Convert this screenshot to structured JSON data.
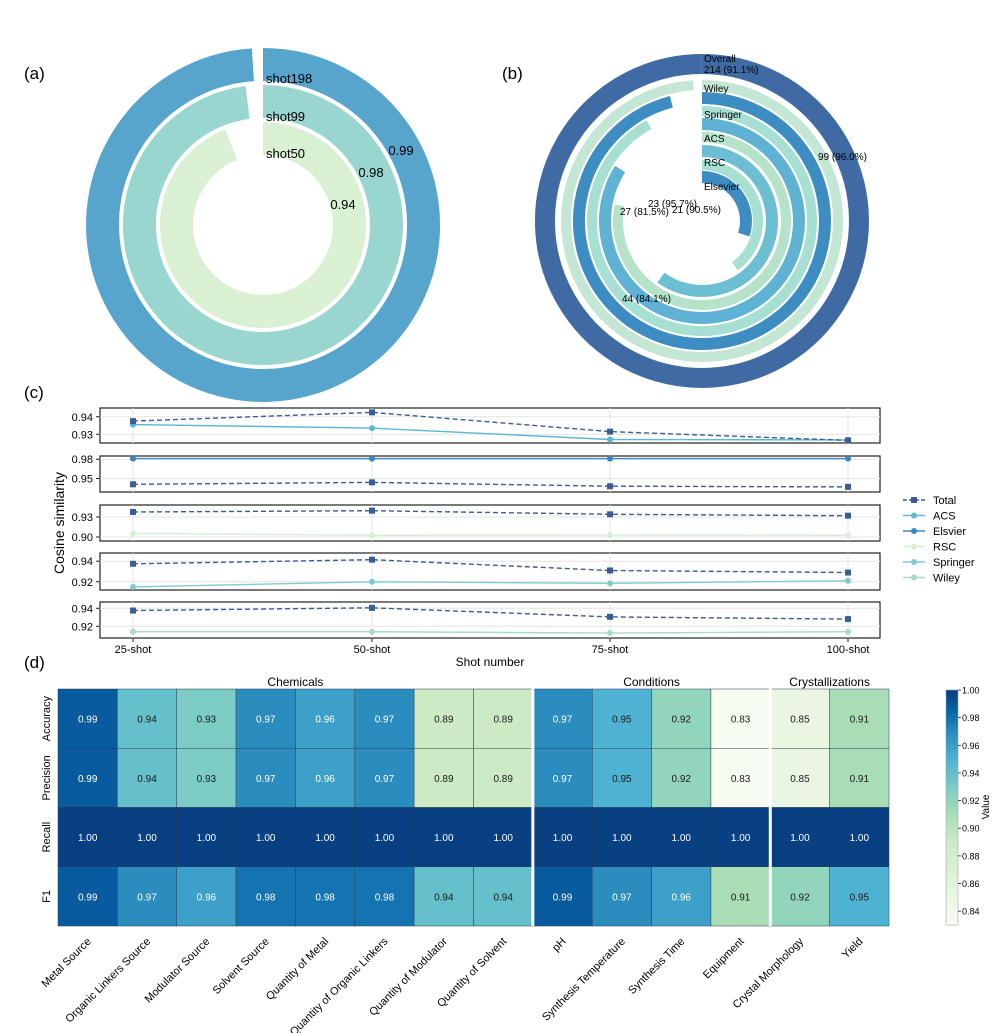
{
  "panel_labels": {
    "a": "(a)",
    "b": "(b)",
    "c": "(c)",
    "d": "(d)"
  },
  "colors": {
    "c1": "#0b4a8f",
    "c2": "#2f78b7",
    "c3": "#57a5cd",
    "c4": "#8fd0c8",
    "c5": "#c5e8c3",
    "total": "#3b5d96",
    "acs": "#5db8d1",
    "elsevier": "#3a86bd",
    "rsc": "#d5efd3",
    "springer": "#7fcbd2",
    "wiley": "#a6dcc0",
    "panelA": [
      "#57a5cd",
      "#98d6cf",
      "#d9f0d3"
    ],
    "panelB": [
      "#3f6aa3",
      "#c4e6d5",
      "#3d8cc2",
      "#a7dfd3",
      "#5fb2d4",
      "#b5e2c9",
      "#6cbfd3"
    ]
  },
  "chart_data": [
    {
      "id": "a",
      "type": "radial-bar",
      "max": 1.0,
      "series": [
        {
          "label": "shot198",
          "value": 0.99,
          "value_label": "0.99"
        },
        {
          "label": "shot99",
          "value": 0.98,
          "value_label": "0.98"
        },
        {
          "label": "shot50",
          "value": 0.94,
          "value_label": "0.94"
        }
      ]
    },
    {
      "id": "b",
      "type": "radial-bar",
      "series": [
        {
          "label": "Overall",
          "count": 214,
          "fraction": 0.911,
          "value_label": "214 (91.1%)",
          "label_position": "inline"
        },
        {
          "label": "Wiley",
          "count": 99,
          "fraction": 0.96,
          "value_label": "99 (96.0%)"
        },
        {
          "label": "Springer",
          "count": 44,
          "fraction": 0.841,
          "value_label": "44 (84.1%)"
        },
        {
          "label": "ACS",
          "count": 27,
          "fraction": 0.815,
          "value_label": "27 (81.5%)"
        },
        {
          "label": "RSC",
          "count": 23,
          "fraction": 0.957,
          "value_label": "23 (95.7%)"
        },
        {
          "label": "Elsevier",
          "count": 21,
          "fraction": 0.905,
          "value_label": "21 (90.5%)"
        }
      ]
    },
    {
      "id": "c",
      "type": "line",
      "categories": [
        "25-shot",
        "50-shot",
        "75-shot",
        "100-shot"
      ],
      "xlabel": "Shot number",
      "ylabel": "Cosine similarity",
      "legend": [
        "Total",
        "ACS",
        "Elsvier",
        "RSC",
        "Springer",
        "Wiley"
      ],
      "subplots": [
        {
          "ylim": [
            0.925,
            0.945
          ],
          "ticks": [
            0.93,
            0.94
          ],
          "tick_labels": [
            "0.93",
            "0.94"
          ],
          "total": [
            0.9375,
            0.9425,
            0.9315,
            0.9265
          ],
          "other": {
            "key": "acs",
            "values": [
              0.9355,
              0.9335,
              0.927,
              0.9268
            ]
          }
        },
        {
          "ylim": [
            0.929,
            0.985
          ],
          "ticks": [
            0.95,
            0.98
          ],
          "tick_labels": [
            "0.95",
            "0.98"
          ],
          "total": [
            0.941,
            0.944,
            0.938,
            0.937
          ],
          "other": {
            "key": "elsevier",
            "values": [
              0.981,
              0.981,
              0.981,
              0.981
            ]
          }
        },
        {
          "ylim": [
            0.894,
            0.948
          ],
          "ticks": [
            0.9,
            0.93
          ],
          "tick_labels": [
            "0.90",
            "0.93"
          ],
          "total": [
            0.9375,
            0.9395,
            0.934,
            0.932
          ],
          "other": {
            "key": "rsc",
            "values": [
              0.9055,
              0.9025,
              0.903,
              0.9025
            ]
          }
        },
        {
          "ylim": [
            0.912,
            0.948
          ],
          "ticks": [
            0.92,
            0.94
          ],
          "tick_labels": [
            "0.92",
            "0.94"
          ],
          "total": [
            0.9375,
            0.9415,
            0.931,
            0.929
          ],
          "other": {
            "key": "springer",
            "values": [
              0.915,
              0.92,
              0.9185,
              0.921
            ]
          }
        },
        {
          "ylim": [
            0.907,
            0.947
          ],
          "ticks": [
            0.92,
            0.94
          ],
          "tick_labels": [
            "0.92",
            "0.94"
          ],
          "total": [
            0.9375,
            0.9405,
            0.9305,
            0.928
          ],
          "other": {
            "key": "wiley",
            "values": [
              0.914,
              0.914,
              0.9125,
              0.914
            ]
          }
        }
      ]
    },
    {
      "id": "d",
      "type": "heatmap",
      "groups": [
        {
          "label": "Chemicals",
          "span": [
            0,
            8
          ]
        },
        {
          "label": "Conditions",
          "span": [
            8,
            12
          ]
        },
        {
          "label": "Crystallizations",
          "span": [
            12,
            14
          ]
        }
      ],
      "columns": [
        "Metal Source",
        "Organic Linkers Source",
        "Modulator Source",
        "Solvent Source",
        "Quantity of Metal",
        "Quantity of Organic Linkers",
        "Quantity of Modulator",
        "Quantity of Solvent",
        "pH",
        "Synthesis Temperature",
        "Synthesis Time",
        "Equipment",
        "Crystal Morphology",
        "Yield"
      ],
      "rows": [
        "Accuracy",
        "Precision",
        "Recall",
        "F1"
      ],
      "values": [
        [
          0.99,
          0.94,
          0.93,
          0.97,
          0.96,
          0.97,
          0.89,
          0.89,
          0.97,
          0.95,
          0.92,
          0.83,
          0.85,
          0.91
        ],
        [
          0.99,
          0.94,
          0.93,
          0.97,
          0.96,
          0.97,
          0.89,
          0.89,
          0.97,
          0.95,
          0.92,
          0.83,
          0.85,
          0.91
        ],
        [
          1.0,
          1.0,
          1.0,
          1.0,
          1.0,
          1.0,
          1.0,
          1.0,
          1.0,
          1.0,
          1.0,
          1.0,
          1.0,
          1.0
        ],
        [
          0.99,
          0.97,
          0.96,
          0.98,
          0.98,
          0.98,
          0.94,
          0.94,
          0.99,
          0.97,
          0.96,
          0.91,
          0.92,
          0.95
        ]
      ],
      "colorbar": {
        "label": "Value",
        "vmin": 0.83,
        "vmax": 1.0,
        "ticks": [
          "1.00",
          "0.98",
          "0.96",
          "0.94",
          "0.92",
          "0.90",
          "0.88",
          "0.86",
          "0.84"
        ]
      }
    }
  ]
}
